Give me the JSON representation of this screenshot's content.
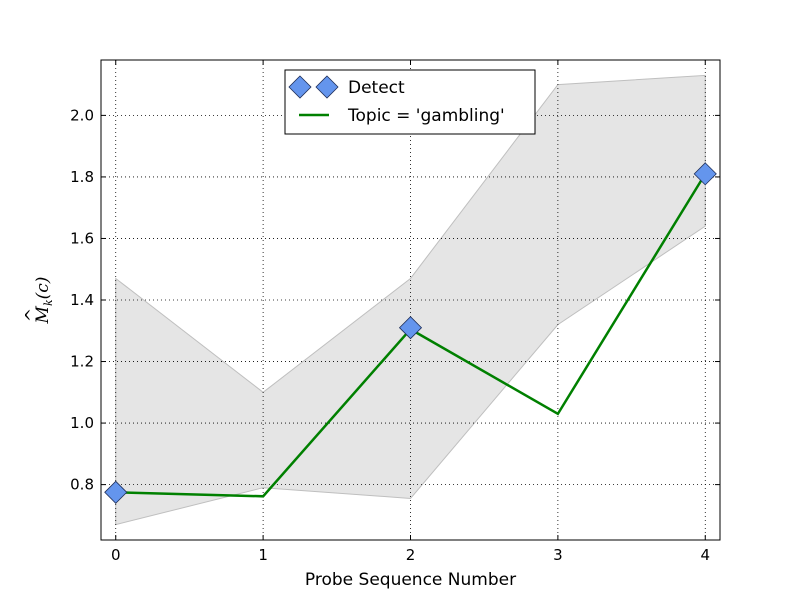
{
  "chart_data": {
    "type": "line",
    "title": "",
    "xlabel": "Probe Sequence Number",
    "ylabel": "M̂k(c)",
    "ylabel_parts": {
      "base": "M",
      "hat": "^",
      "sub": "k",
      "arg": "(c)"
    },
    "x": [
      0,
      1,
      2,
      3,
      4
    ],
    "xlim": [
      -0.1,
      4.1
    ],
    "ylim": [
      0.62,
      2.18
    ],
    "xticks": [
      "0",
      "1",
      "2",
      "3",
      "4"
    ],
    "yticks": [
      {
        "v": 0.8,
        "label": "0.8"
      },
      {
        "v": 1.0,
        "label": "1.0"
      },
      {
        "v": 1.2,
        "label": "1.2"
      },
      {
        "v": 1.4,
        "label": "1.4"
      },
      {
        "v": 1.6,
        "label": "1.6"
      },
      {
        "v": 1.8,
        "label": "1.8"
      },
      {
        "v": 2.0,
        "label": "2.0"
      }
    ],
    "grid": true,
    "legend_position": "upper-center",
    "series": [
      {
        "name": "Topic = 'gambling'",
        "kind": "line",
        "color": "#008000",
        "values": [
          0.775,
          0.762,
          1.305,
          1.03,
          1.81
        ]
      },
      {
        "name": "Detect",
        "kind": "marker",
        "marker": "diamond",
        "color": "#6495ED",
        "points": [
          {
            "x": 0,
            "y": 0.775
          },
          {
            "x": 2,
            "y": 1.31
          },
          {
            "x": 4,
            "y": 1.81
          }
        ]
      }
    ],
    "band": {
      "color": "#e5e5e5",
      "edge_color": "#bfbfbf",
      "upper": [
        1.47,
        1.1,
        1.47,
        2.1,
        2.13
      ],
      "lower": [
        0.67,
        0.79,
        0.755,
        1.32,
        1.64
      ]
    }
  }
}
